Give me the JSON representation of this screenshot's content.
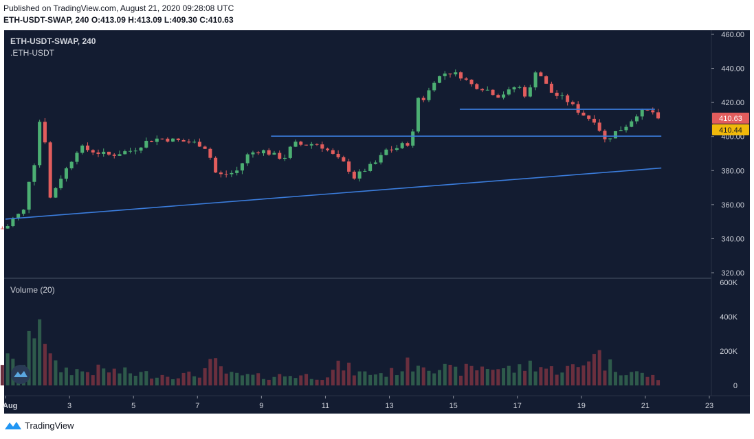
{
  "header": {
    "published": "Published on TradingView.com, August 21, 2020 09:28:08 UTC",
    "symbol_interval": "ETH-USDT-SWAP, 240",
    "ohlc": "O:413.09 H:413.09 L:409.30 C:410.63"
  },
  "legend": {
    "symbol": "ETH-USDT-SWAP, 240",
    "source": ".ETH-USDT",
    "volume": "Volume (20)"
  },
  "price_badges": {
    "last": "410.63",
    "line": "410.44"
  },
  "footer": {
    "brand": "TradingView"
  },
  "colors": {
    "background": "#131c31",
    "up": "#4caf73",
    "down": "#e25d5d",
    "vol_up": "#2e5a4b",
    "vol_down": "#6a2f3e",
    "trendline": "#3b7ddd",
    "last_badge": "#e25d5d",
    "line_badge": "#f0b90b"
  },
  "chart_data": {
    "type": "candlestick",
    "y_ticks": [
      "460.00",
      "440.00",
      "420.00",
      "400.00",
      "380.00",
      "360.00",
      "340.00",
      "320.00"
    ],
    "y_range": [
      320,
      460
    ],
    "volume_ticks": [
      "600K",
      "400K",
      "200K",
      "0"
    ],
    "volume_range": [
      0,
      600000
    ],
    "x_ticks": [
      "Aug",
      "3",
      "5",
      "7",
      "9",
      "11",
      "13",
      "15",
      "17",
      "19",
      "21",
      "23"
    ],
    "x_range_days": [
      1,
      23
    ],
    "trendlines": [
      {
        "from": [
          "Aug 1",
          351.5
        ],
        "to": [
          "Aug 21.5",
          381.5
        ]
      },
      {
        "from": [
          "Aug 9.3",
          400.2
        ],
        "to": [
          "Aug 21.5",
          400.2
        ]
      },
      {
        "from": [
          "Aug 15.2",
          416.0
        ],
        "to": [
          "Aug 21.3",
          416.0
        ]
      }
    ],
    "anchors": [
      [
        1.0,
        346
      ],
      [
        1.25,
        352
      ],
      [
        1.6,
        357
      ],
      [
        1.8,
        383
      ],
      [
        1.95,
        385
      ],
      [
        2.05,
        410
      ],
      [
        2.3,
        393
      ],
      [
        2.4,
        364
      ],
      [
        2.7,
        375
      ],
      [
        3.0,
        384
      ],
      [
        3.3,
        394
      ],
      [
        3.6,
        392
      ],
      [
        4.0,
        390
      ],
      [
        4.3,
        389
      ],
      [
        4.7,
        391
      ],
      [
        5.0,
        392
      ],
      [
        5.4,
        397
      ],
      [
        5.8,
        399
      ],
      [
        6.2,
        398
      ],
      [
        6.6,
        397
      ],
      [
        7.0,
        396
      ],
      [
        7.3,
        393
      ],
      [
        7.6,
        377
      ],
      [
        7.9,
        378
      ],
      [
        8.2,
        379
      ],
      [
        8.6,
        390
      ],
      [
        9.0,
        392
      ],
      [
        9.4,
        389
      ],
      [
        9.7,
        387
      ],
      [
        10.0,
        396
      ],
      [
        10.3,
        395
      ],
      [
        10.7,
        396
      ],
      [
        11.0,
        393
      ],
      [
        11.3,
        388
      ],
      [
        11.6,
        384
      ],
      [
        11.9,
        376
      ],
      [
        12.2,
        380
      ],
      [
        12.6,
        385
      ],
      [
        12.9,
        392
      ],
      [
        13.2,
        393
      ],
      [
        13.5,
        396
      ],
      [
        13.7,
        396
      ],
      [
        13.85,
        423
      ],
      [
        14.1,
        422
      ],
      [
        14.4,
        433
      ],
      [
        14.8,
        438
      ],
      [
        15.2,
        436
      ],
      [
        15.6,
        430
      ],
      [
        16.0,
        428
      ],
      [
        16.4,
        424
      ],
      [
        16.8,
        427
      ],
      [
        17.0,
        431
      ],
      [
        17.2,
        424
      ],
      [
        17.4,
        428
      ],
      [
        17.6,
        441
      ],
      [
        17.8,
        433
      ],
      [
        18.1,
        425
      ],
      [
        18.5,
        422
      ],
      [
        18.9,
        415
      ],
      [
        19.2,
        411
      ],
      [
        19.5,
        409
      ],
      [
        19.65,
        398
      ],
      [
        19.8,
        398
      ],
      [
        20.0,
        402
      ],
      [
        20.3,
        405
      ],
      [
        20.5,
        408
      ],
      [
        20.7,
        413
      ],
      [
        21.0,
        415
      ],
      [
        21.3,
        414
      ],
      [
        21.45,
        410.6
      ]
    ],
    "volume_anchors": [
      [
        1.0,
        150000
      ],
      [
        1.3,
        120000
      ],
      [
        1.7,
        120000
      ],
      [
        1.8,
        450000
      ],
      [
        2.0,
        280000
      ],
      [
        2.1,
        560000
      ],
      [
        2.3,
        180000
      ],
      [
        2.6,
        100000
      ],
      [
        3.0,
        90000
      ],
      [
        3.5,
        80000
      ],
      [
        4.0,
        90000
      ],
      [
        5.0,
        70000
      ],
      [
        6.0,
        60000
      ],
      [
        7.0,
        60000
      ],
      [
        7.5,
        130000
      ],
      [
        8.0,
        60000
      ],
      [
        9.0,
        50000
      ],
      [
        10.0,
        60000
      ],
      [
        11.0,
        50000
      ],
      [
        11.5,
        120000
      ],
      [
        12.0,
        70000
      ],
      [
        13.0,
        70000
      ],
      [
        13.6,
        120000
      ],
      [
        14.0,
        140000
      ],
      [
        14.5,
        110000
      ],
      [
        15.0,
        80000
      ],
      [
        16.0,
        110000
      ],
      [
        17.0,
        90000
      ],
      [
        17.5,
        130000
      ],
      [
        18.0,
        90000
      ],
      [
        18.7,
        100000
      ],
      [
        19.0,
        100000
      ],
      [
        19.4,
        230000
      ],
      [
        19.7,
        130000
      ],
      [
        20.3,
        90000
      ],
      [
        21.0,
        60000
      ],
      [
        21.45,
        40000
      ]
    ]
  }
}
